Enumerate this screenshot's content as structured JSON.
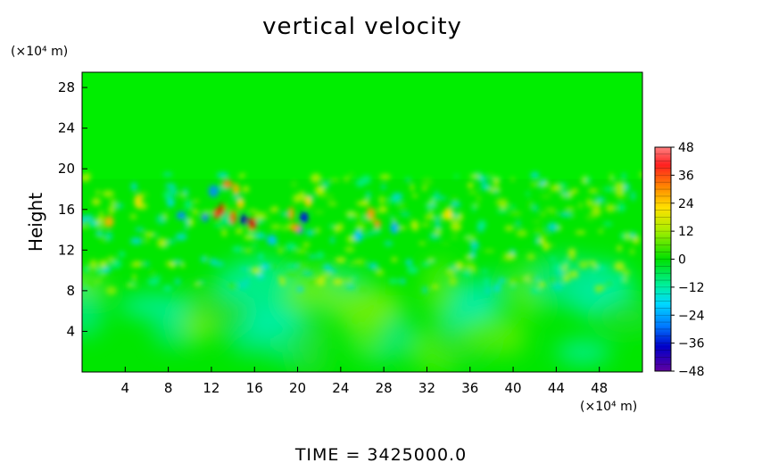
{
  "chart_data": {
    "type": "heatmap",
    "title": "vertical velocity",
    "ylabel": "Height",
    "x_unit": "(×10⁴ m)",
    "y_unit": "(×10⁴ m)",
    "footer": "TIME  =  3425000.0",
    "xlim": [
      0,
      52
    ],
    "ylim": [
      0,
      29.5
    ],
    "x_ticks": [
      4,
      8,
      12,
      16,
      20,
      24,
      28,
      32,
      36,
      40,
      44,
      48
    ],
    "y_ticks": [
      4,
      8,
      12,
      16,
      20,
      24,
      28
    ],
    "colorbar": {
      "range": [
        -48,
        48
      ],
      "tick_values": [
        48,
        36,
        24,
        12,
        0,
        -12,
        -24,
        -36,
        -48
      ],
      "tick_labels": [
        "48",
        "36",
        "24",
        "12",
        "0",
        "−12",
        "−24",
        "−36",
        "−48"
      ]
    }
  },
  "colors": {
    "field_base": "#00e600",
    "upper_field": "#00ee00",
    "positive_strong": "#e00000",
    "positive_mid": "#ffd400",
    "negative_mid": "#00c8ff",
    "negative_strong": "#0000c8"
  }
}
